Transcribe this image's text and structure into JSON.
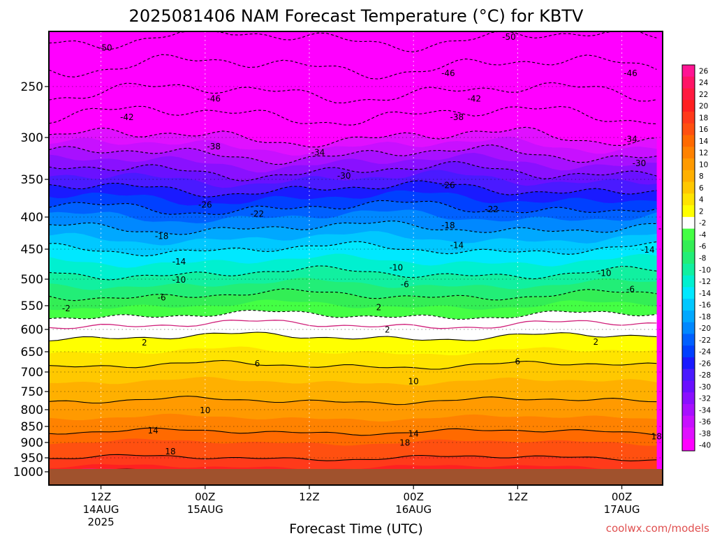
{
  "title": "2025081406 NAM Forecast Temperature (°C) for KBTV",
  "credit": "coolwx.com/models",
  "chart_data": {
    "type": "heatmap",
    "title": "2025081406 NAM Forecast Temperature (°C) for KBTV",
    "xlabel": "Forecast Time (UTC)",
    "ylabel": "",
    "y_unit": "hPa",
    "y_ticks": [
      250,
      300,
      350,
      400,
      450,
      500,
      550,
      600,
      650,
      700,
      750,
      800,
      850,
      900,
      950,
      1000
    ],
    "ylim": [
      1000,
      200
    ],
    "xlim_hours": [
      6,
      78
    ],
    "x_ticks": [
      {
        "hour": 12,
        "lines": [
          "12Z",
          "14AUG",
          "2025"
        ]
      },
      {
        "hour": 24,
        "lines": [
          "00Z",
          "15AUG"
        ]
      },
      {
        "hour": 36,
        "lines": [
          "12Z"
        ]
      },
      {
        "hour": 48,
        "lines": [
          "00Z",
          "16AUG"
        ]
      },
      {
        "hour": 60,
        "lines": [
          "12Z"
        ]
      },
      {
        "hour": 72,
        "lines": [
          "00Z",
          "17AUG"
        ]
      },
      {
        "hour": 84,
        "lines": [
          "12Z"
        ]
      }
    ],
    "colorbar_labels": [
      "26",
      "24",
      "22",
      "20",
      "18",
      "16",
      "14",
      "12",
      "10",
      "8",
      "6",
      "4",
      "2",
      "-2",
      "-4",
      "-6",
      "-8",
      "-10",
      "-12",
      "-14",
      "-16",
      "-18",
      "-20",
      "-22",
      "-24",
      "-26",
      "-28",
      "-30",
      "-32",
      "-34",
      "-36",
      "-38",
      "-40"
    ],
    "colorbar_colors": [
      "#ff1493",
      "#ff1466",
      "#ff1a40",
      "#ff2020",
      "#ff3a1a",
      "#ff5010",
      "#ff6a00",
      "#ff8200",
      "#ff9a00",
      "#ffb000",
      "#ffc800",
      "#ffe400",
      "#ffff00",
      "#ffffff",
      "#44ff44",
      "#33ee55",
      "#22ee77",
      "#11f0a0",
      "#00f0d0",
      "#00e8ff",
      "#00c8ff",
      "#00a8ff",
      "#0088ff",
      "#0060ff",
      "#0040ff",
      "#1a1aff",
      "#4a1aff",
      "#6a10ff",
      "#8a10ff",
      "#a810ff",
      "#c810ff",
      "#e010ff",
      "#ff00ff"
    ],
    "levels": [
      {
        "p": 200,
        "t": -55
      },
      {
        "p": 250,
        "t": -47
      },
      {
        "p": 300,
        "t": -38
      },
      {
        "p": 350,
        "t": -28
      },
      {
        "p": 400,
        "t": -20
      },
      {
        "p": 450,
        "t": -14
      },
      {
        "p": 500,
        "t": -9
      },
      {
        "p": 550,
        "t": -4
      },
      {
        "p": 600,
        "t": 1
      },
      {
        "p": 650,
        "t": 4
      },
      {
        "p": 700,
        "t": 7
      },
      {
        "p": 750,
        "t": 9
      },
      {
        "p": 800,
        "t": 11
      },
      {
        "p": 850,
        "t": 13
      },
      {
        "p": 900,
        "t": 16
      },
      {
        "p": 950,
        "t": 18
      },
      {
        "p": 1000,
        "t": 21
      }
    ],
    "contour_labels": [
      {
        "text": "-50",
        "hour": 12.5,
        "p": 215
      },
      {
        "text": "-50",
        "hour": 59,
        "p": 205
      },
      {
        "text": "-50",
        "hour": 79,
        "p": 207
      },
      {
        "text": "-46",
        "hour": 25,
        "p": 262
      },
      {
        "text": "-46",
        "hour": 52,
        "p": 238
      },
      {
        "text": "-46",
        "hour": 73,
        "p": 238
      },
      {
        "text": "-42",
        "hour": 15,
        "p": 280
      },
      {
        "text": "-42",
        "hour": 55,
        "p": 262
      },
      {
        "text": "-42",
        "hour": 79,
        "p": 257
      },
      {
        "text": "-38",
        "hour": 25,
        "p": 311
      },
      {
        "text": "-38",
        "hour": 53,
        "p": 280
      },
      {
        "text": "-38",
        "hour": 79,
        "p": 282
      },
      {
        "text": "-34",
        "hour": 37,
        "p": 318
      },
      {
        "text": "-34",
        "hour": 73,
        "p": 302
      },
      {
        "text": "-30",
        "hour": 40,
        "p": 346
      },
      {
        "text": "-30",
        "hour": 74,
        "p": 331
      },
      {
        "text": "-26",
        "hour": 24,
        "p": 384
      },
      {
        "text": "-26",
        "hour": 52,
        "p": 358
      },
      {
        "text": "-26",
        "hour": 78,
        "p": 361
      },
      {
        "text": "-22",
        "hour": 30,
        "p": 396
      },
      {
        "text": "-22",
        "hour": 57,
        "p": 390
      },
      {
        "text": "-22",
        "hour": 81,
        "p": 385
      },
      {
        "text": "-18",
        "hour": 19,
        "p": 430
      },
      {
        "text": "-18",
        "hour": 52,
        "p": 413
      },
      {
        "text": "-18",
        "hour": 77,
        "p": 418
      },
      {
        "text": "-14",
        "hour": 21,
        "p": 471
      },
      {
        "text": "-14",
        "hour": 53,
        "p": 444
      },
      {
        "text": "-14",
        "hour": 75,
        "p": 451
      },
      {
        "text": "-10",
        "hour": 21,
        "p": 501
      },
      {
        "text": "-10",
        "hour": 46,
        "p": 481
      },
      {
        "text": "-10",
        "hour": 70,
        "p": 490
      },
      {
        "text": "-6",
        "hour": 19,
        "p": 535
      },
      {
        "text": "-6",
        "hour": 47,
        "p": 510
      },
      {
        "text": "-6",
        "hour": 73,
        "p": 519
      },
      {
        "text": "-2",
        "hour": 8,
        "p": 556
      },
      {
        "text": "2",
        "hour": 44,
        "p": 554
      },
      {
        "text": "2",
        "hour": 79,
        "p": 578
      },
      {
        "text": "2",
        "hour": 45,
        "p": 601
      },
      {
        "text": "2",
        "hour": 17,
        "p": 630
      },
      {
        "text": "2",
        "hour": 69,
        "p": 628
      },
      {
        "text": "6",
        "hour": 30,
        "p": 679
      },
      {
        "text": "6",
        "hour": 60,
        "p": 674
      },
      {
        "text": "6",
        "hour": 79,
        "p": 691
      },
      {
        "text": "10",
        "hour": 48,
        "p": 724
      },
      {
        "text": "10",
        "hour": 24,
        "p": 802
      },
      {
        "text": "10",
        "hour": 78,
        "p": 780
      },
      {
        "text": "14",
        "hour": 18,
        "p": 863
      },
      {
        "text": "14",
        "hour": 48,
        "p": 873
      },
      {
        "text": "14",
        "hour": 78,
        "p": 840
      },
      {
        "text": "18",
        "hour": 20,
        "p": 930
      },
      {
        "text": "18",
        "hour": 47,
        "p": 901
      },
      {
        "text": "18",
        "hour": 76,
        "p": 882
      }
    ]
  }
}
